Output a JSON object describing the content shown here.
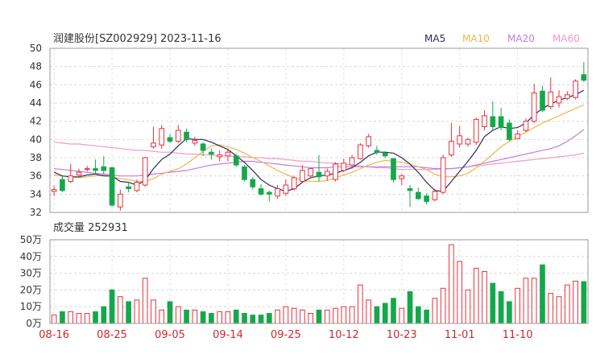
{
  "chart_data": [
    {
      "type": "candlestick",
      "title": "润建股份[SZ002929] 2023-11-16",
      "legend": [
        {
          "name": "MA5",
          "color": "#2b2b5e"
        },
        {
          "name": "MA10",
          "color": "#f0b64c"
        },
        {
          "name": "MA20",
          "color": "#c27ce0"
        },
        {
          "name": "MA60",
          "color": "#f29ac8"
        }
      ],
      "ylim": [
        32,
        50
      ],
      "y_ticks": [
        "50",
        "48",
        "46",
        "44",
        "42",
        "40",
        "38",
        "36",
        "34",
        "32"
      ],
      "y_tick_values": [
        50,
        48,
        46,
        44,
        42,
        40,
        38,
        36,
        34,
        32
      ],
      "x_ticks": [
        "08-16",
        "08-25",
        "09-05",
        "09-14",
        "09-25",
        "10-12",
        "10-23",
        "11-01",
        "11-10"
      ],
      "x_tick_indices": [
        0,
        7,
        14,
        21,
        28,
        35,
        42,
        49,
        56
      ],
      "up_color": "#e8323c",
      "down_color": "#14a84a",
      "ohlc": [
        [
          34.3,
          34.5,
          33.8,
          34.9
        ],
        [
          35.6,
          34.4,
          34.2,
          36.0
        ],
        [
          35.4,
          36.0,
          35.2,
          37.3
        ],
        [
          36.1,
          36.4,
          36.0,
          36.8
        ],
        [
          36.7,
          36.8,
          36.5,
          37.1
        ],
        [
          36.8,
          36.6,
          36.2,
          37.8
        ],
        [
          37.0,
          36.6,
          36.2,
          38.2
        ],
        [
          36.9,
          32.8,
          32.6,
          37.0
        ],
        [
          32.6,
          34.0,
          32.2,
          34.5
        ],
        [
          34.8,
          34.6,
          34.2,
          35.4
        ],
        [
          34.4,
          35.3,
          34.2,
          35.6
        ],
        [
          35.0,
          38.0,
          34.8,
          38.1
        ],
        [
          39.2,
          39.6,
          39.0,
          41.4
        ],
        [
          39.4,
          41.2,
          39.0,
          41.6
        ],
        [
          40.2,
          39.8,
          39.6,
          40.6
        ],
        [
          39.8,
          41.0,
          39.6,
          41.6
        ],
        [
          40.8,
          40.0,
          39.7,
          41.2
        ],
        [
          39.6,
          39.9,
          39.3,
          40.3
        ],
        [
          39.5,
          38.8,
          38.2,
          39.7
        ],
        [
          38.6,
          38.4,
          37.8,
          39.0
        ],
        [
          38.1,
          38.3,
          37.6,
          38.8
        ],
        [
          38.2,
          38.6,
          37.6,
          39.0
        ],
        [
          38.2,
          37.2,
          37.0,
          38.4
        ],
        [
          37.0,
          35.6,
          35.4,
          37.2
        ],
        [
          35.6,
          34.8,
          34.5,
          35.9
        ],
        [
          34.6,
          34.0,
          33.8,
          35.1
        ],
        [
          34.2,
          34.0,
          33.2,
          34.4
        ],
        [
          33.8,
          34.6,
          33.5,
          35.0
        ],
        [
          34.1,
          35.0,
          33.8,
          35.6
        ],
        [
          34.6,
          35.8,
          34.4,
          36.0
        ],
        [
          35.4,
          36.6,
          35.2,
          37.2
        ],
        [
          36.0,
          36.8,
          35.8,
          36.9
        ],
        [
          36.4,
          35.9,
          35.4,
          38.3
        ],
        [
          36.0,
          36.5,
          35.5,
          36.8
        ],
        [
          35.6,
          37.3,
          35.4,
          37.5
        ],
        [
          36.6,
          37.4,
          36.4,
          37.9
        ],
        [
          37.2,
          38.0,
          36.8,
          38.3
        ],
        [
          37.9,
          39.4,
          37.8,
          39.6
        ],
        [
          39.3,
          40.3,
          39.1,
          40.6
        ],
        [
          38.8,
          38.6,
          38.3,
          39.3
        ],
        [
          38.5,
          38.2,
          38.0,
          38.7
        ],
        [
          37.9,
          35.6,
          35.3,
          37.9
        ],
        [
          35.7,
          36.0,
          35.0,
          36.2
        ],
        [
          34.6,
          34.4,
          32.6,
          35.0
        ],
        [
          34.2,
          33.5,
          33.4,
          34.7
        ],
        [
          33.8,
          33.2,
          32.9,
          34.1
        ],
        [
          33.4,
          34.3,
          33.2,
          34.6
        ],
        [
          34.2,
          38.0,
          34.0,
          38.3
        ],
        [
          38.3,
          39.8,
          38.1,
          41.8
        ],
        [
          39.5,
          40.4,
          39.1,
          41.5
        ],
        [
          39.5,
          40.0,
          39.2,
          40.2
        ],
        [
          39.7,
          42.2,
          39.4,
          42.4
        ],
        [
          41.4,
          42.6,
          41.0,
          43.2
        ],
        [
          42.5,
          41.4,
          41.1,
          44.2
        ],
        [
          42.5,
          41.3,
          41.0,
          43.5
        ],
        [
          41.8,
          40.0,
          39.8,
          42.2
        ],
        [
          40.1,
          40.6,
          40.0,
          41.0
        ],
        [
          41.0,
          42.0,
          40.8,
          42.3
        ],
        [
          42.0,
          45.1,
          41.8,
          46.1
        ],
        [
          45.3,
          43.2,
          43.0,
          45.9
        ],
        [
          43.6,
          45.2,
          43.3,
          46.8
        ],
        [
          44.0,
          44.7,
          43.5,
          45.4
        ],
        [
          44.5,
          44.9,
          44.3,
          45.3
        ],
        [
          44.6,
          46.4,
          44.4,
          46.6
        ],
        [
          47.1,
          46.5,
          46.3,
          48.5
        ]
      ],
      "ma5": [
        36.4,
        36.0,
        35.9,
        35.9,
        36.1,
        36.2,
        36.0,
        36.0,
        35.4,
        35.3,
        35.0,
        35.5,
        36.8,
        37.8,
        38.4,
        39.3,
        40.1,
        40.0,
        40.0,
        39.7,
        39.3,
        38.9,
        38.2,
        37.5,
        36.6,
        35.6,
        35.0,
        34.6,
        34.3,
        34.6,
        35.3,
        35.8,
        36.0,
        36.1,
        36.3,
        36.6,
        36.9,
        37.5,
        38.2,
        38.6,
        38.6,
        38.5,
        38.0,
        37.3,
        36.4,
        35.3,
        34.4,
        34.3,
        35.4,
        36.5,
        37.6,
        38.8,
        40.3,
        41.0,
        41.4,
        41.2,
        41.3,
        41.8,
        42.7,
        43.4,
        43.9,
        44.3,
        44.6,
        44.9,
        45.4
      ],
      "ma10": [
        36.1,
        36.0,
        35.9,
        35.8,
        35.9,
        36.0,
        36.1,
        35.9,
        35.7,
        35.6,
        35.4,
        35.4,
        35.7,
        36.2,
        36.5,
        36.8,
        37.3,
        38.0,
        38.7,
        39.3,
        39.4,
        39.2,
        38.9,
        38.5,
        38.0,
        37.6,
        37.1,
        36.6,
        36.2,
        35.8,
        35.5,
        35.4,
        35.4,
        35.5,
        35.8,
        36.1,
        36.4,
        36.8,
        37.2,
        37.5,
        37.7,
        37.6,
        37.5,
        37.3,
        37.0,
        36.7,
        36.2,
        35.9,
        35.9,
        36.0,
        36.3,
        36.9,
        37.6,
        38.4,
        39.2,
        39.8,
        40.3,
        40.8,
        41.3,
        41.8,
        42.2,
        42.6,
        43.0,
        43.4,
        43.8
      ],
      "ma20": [
        36.8,
        36.7,
        36.6,
        36.5,
        36.4,
        36.3,
        36.2,
        36.1,
        36.0,
        36.0,
        36.0,
        36.1,
        36.2,
        36.3,
        36.4,
        36.5,
        36.6,
        36.8,
        37.0,
        37.2,
        37.3,
        37.4,
        37.5,
        37.6,
        37.6,
        37.5,
        37.4,
        37.3,
        37.2,
        37.1,
        37.0,
        36.9,
        36.9,
        36.9,
        37.0,
        37.0,
        37.0,
        37.0,
        37.0,
        37.0,
        37.0,
        37.0,
        37.0,
        37.0,
        37.0,
        36.9,
        36.8,
        36.8,
        36.8,
        36.9,
        37.0,
        37.2,
        37.4,
        37.6,
        37.8,
        38.0,
        38.2,
        38.4,
        38.6,
        38.8,
        39.0,
        39.3,
        39.8,
        40.4,
        41.1
      ],
      "ma60": [
        39.7,
        39.6,
        39.5,
        39.5,
        39.4,
        39.3,
        39.2,
        39.1,
        39.0,
        38.9,
        38.8,
        38.8,
        38.7,
        38.6,
        38.6,
        38.5,
        38.4,
        38.4,
        38.3,
        38.3,
        38.2,
        38.2,
        38.1,
        38.1,
        38.0,
        38.0,
        37.9,
        37.9,
        37.8,
        37.7,
        37.6,
        37.6,
        37.5,
        37.4,
        37.4,
        37.3,
        37.2,
        37.1,
        37.0,
        36.9,
        36.9,
        36.8,
        36.7,
        36.7,
        36.7,
        36.7,
        36.7,
        36.8,
        36.8,
        36.9,
        37.0,
        37.1,
        37.2,
        37.3,
        37.4,
        37.5,
        37.6,
        37.7,
        37.8,
        37.9,
        38.0,
        38.1,
        38.2,
        38.3,
        38.5
      ]
    },
    {
      "type": "bar",
      "title": "成交量 252931",
      "ylim": [
        0,
        500000
      ],
      "y_ticks": [
        "50万",
        "40万",
        "30万",
        "20万",
        "10万",
        "0万"
      ],
      "y_tick_values": [
        500000,
        400000,
        300000,
        200000,
        100000,
        0
      ],
      "x_ticks": [
        "08-16",
        "08-25",
        "09-05",
        "09-14",
        "09-25",
        "10-12",
        "10-23",
        "11-01",
        "11-10"
      ],
      "values": [
        50000,
        70000,
        70000,
        60000,
        60000,
        70000,
        100000,
        200000,
        160000,
        130000,
        140000,
        270000,
        140000,
        80000,
        130000,
        100000,
        80000,
        80000,
        70000,
        60000,
        70000,
        70000,
        80000,
        60000,
        50000,
        50000,
        60000,
        80000,
        100000,
        90000,
        80000,
        60000,
        80000,
        80000,
        90000,
        100000,
        100000,
        230000,
        140000,
        100000,
        120000,
        150000,
        90000,
        190000,
        100000,
        80000,
        150000,
        210000,
        470000,
        370000,
        200000,
        330000,
        310000,
        240000,
        190000,
        130000,
        210000,
        270000,
        270000,
        350000,
        180000,
        160000,
        230000,
        253000,
        250000
      ]
    }
  ]
}
